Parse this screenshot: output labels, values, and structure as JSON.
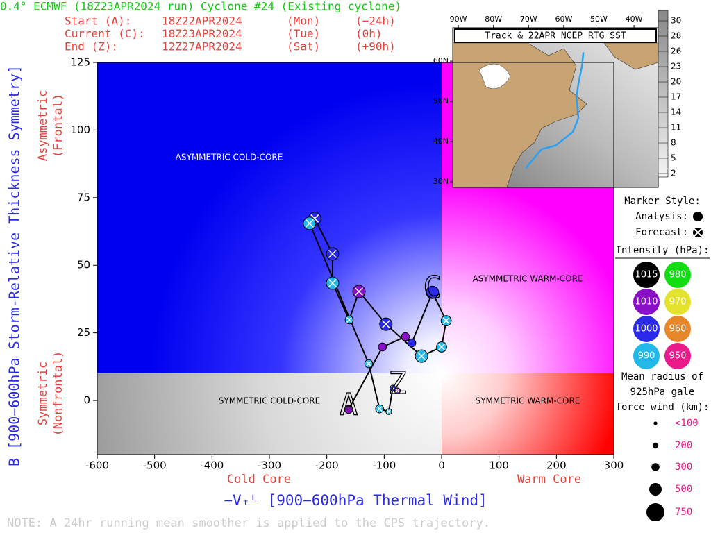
{
  "chart_data": [
    {
      "type": "trajectory",
      "title": "0.4° ECMWF (18Z23APR2024 run) Cyclone #24 (Existing cyclone)",
      "header_rows": [
        [
          "Start (A):",
          "18Z22APR2024",
          "(Mon)",
          "(−24h)"
        ],
        [
          "Current (C):",
          "18Z23APR2024",
          "(Tue)",
          "(0h)"
        ],
        [
          "End (Z):",
          "12Z27APR2024",
          "(Sat)",
          "(+90h)"
        ]
      ],
      "regions": [
        "ASYMMETRIC COLD-CORE",
        "ASYMMETRIC WARM-CORE",
        "SYMMETRIC COLD-CORE",
        "SYMMETRIC WARM-CORE"
      ],
      "x_label": "−Vₜᴸ [900−600hPa Thermal Wind]",
      "x_sublabels": [
        "Cold Core",
        "Warm Core"
      ],
      "y_label": "B [900−600hPa Storm-Relative Thickness Symmetry]",
      "y_sublabels": [
        [
          "Asymmetric",
          "(Frontal)"
        ],
        [
          "Symmetric",
          "(Nonfrontal)"
        ]
      ],
      "note": "NOTE:  A 24hr running mean smoother is applied to the CPS trajectory.",
      "xlim": [
        -600,
        300
      ],
      "xticks": [
        -600,
        -500,
        -400,
        -300,
        -200,
        -100,
        0,
        100,
        200,
        300
      ],
      "ylim": [
        -20,
        125
      ],
      "yticks": [
        0,
        25,
        50,
        75,
        100,
        125
      ],
      "x": [
        -162,
        -103,
        -63,
        -52,
        -16,
        8,
        0,
        -35,
        -97,
        -144,
        -161,
        -190,
        -190,
        -221,
        -230,
        -127,
        -108,
        -92,
        -85,
        -77
      ],
      "y": [
        -3.3,
        19.8,
        23.6,
        21.3,
        40,
        29.5,
        19.8,
        16.4,
        28.2,
        40.3,
        29.8,
        43.4,
        54.2,
        67.3,
        65.5,
        13.6,
        -3.1,
        -4.1,
        4.6,
        3.6
      ],
      "pressure": [
        1010,
        1010,
        1010,
        1000,
        1000,
        990,
        990,
        990,
        1000,
        1010,
        990,
        990,
        1000,
        1000,
        990,
        990,
        990,
        990,
        1000,
        1010
      ],
      "wind_radius": [
        300,
        300,
        300,
        300,
        500,
        400,
        400,
        500,
        500,
        500,
        300,
        500,
        500,
        500,
        500,
        300,
        300,
        200,
        200,
        200
      ],
      "marker": [
        "analysis",
        "analysis",
        "analysis",
        "analysis",
        "analysis",
        "forecast",
        "forecast",
        "forecast",
        "forecast",
        "forecast",
        "forecast",
        "forecast",
        "forecast",
        "forecast",
        "forecast",
        "forecast",
        "forecast",
        "forecast",
        "forecast",
        "forecast"
      ],
      "start_label": "A",
      "current_label": "C",
      "end_label": "Z",
      "legend": {
        "marker_title": "Marker Style:",
        "analysis": "Analysis:",
        "forecast": "Forecast:",
        "intensity_title": "Intensity (hPa):",
        "intensities": [
          {
            "value": 1015,
            "color": "#000000"
          },
          {
            "value": 980,
            "color": "#11dd11"
          },
          {
            "value": 1010,
            "color": "#8a10c8"
          },
          {
            "value": 970,
            "color": "#e3e32e"
          },
          {
            "value": 1000,
            "color": "#2a2ae8"
          },
          {
            "value": 960,
            "color": "#e8862a"
          },
          {
            "value": 990,
            "color": "#22b8e8"
          },
          {
            "value": 950,
            "color": "#ea1a8a"
          }
        ],
        "size_title": [
          "Mean radius of",
          "925hPa gale",
          "force wind (km):"
        ],
        "sizes": [
          {
            "value": 100,
            "label": "<100"
          },
          200,
          300,
          500,
          750
        ]
      }
    },
    {
      "type": "map",
      "title": "Track & 22APR NCEP RTG SST",
      "xlim": [
        -91.6,
        -33.1
      ],
      "ylim": [
        28.6,
        68.3
      ],
      "xticks": [
        {
          "value": -90,
          "label": "90W"
        },
        {
          "value": -80,
          "label": "80W"
        },
        {
          "value": -70,
          "label": "70W"
        },
        {
          "value": -60,
          "label": "60W"
        },
        {
          "value": -50,
          "label": "50W"
        },
        {
          "value": -40,
          "label": "40W"
        }
      ],
      "yticks": [
        {
          "value": 30,
          "label": "30N"
        },
        {
          "value": 40,
          "label": "40N"
        },
        {
          "value": 50,
          "label": "50N"
        },
        {
          "value": 60,
          "label": "60N"
        }
      ],
      "lon": [
        -70.8,
        -66.3,
        -62.3,
        -57.4,
        -55.8,
        -56.4,
        -55.8,
        -54.8,
        -54.4
      ],
      "lat": [
        33.4,
        38.1,
        39.0,
        42.4,
        45.9,
        51.0,
        54.5,
        58.8,
        62.2
      ],
      "color": "#2aa0f0",
      "colorbar_ticks": [
        30,
        28,
        26,
        23,
        20,
        17,
        14,
        11,
        8,
        5,
        2
      ]
    }
  ]
}
